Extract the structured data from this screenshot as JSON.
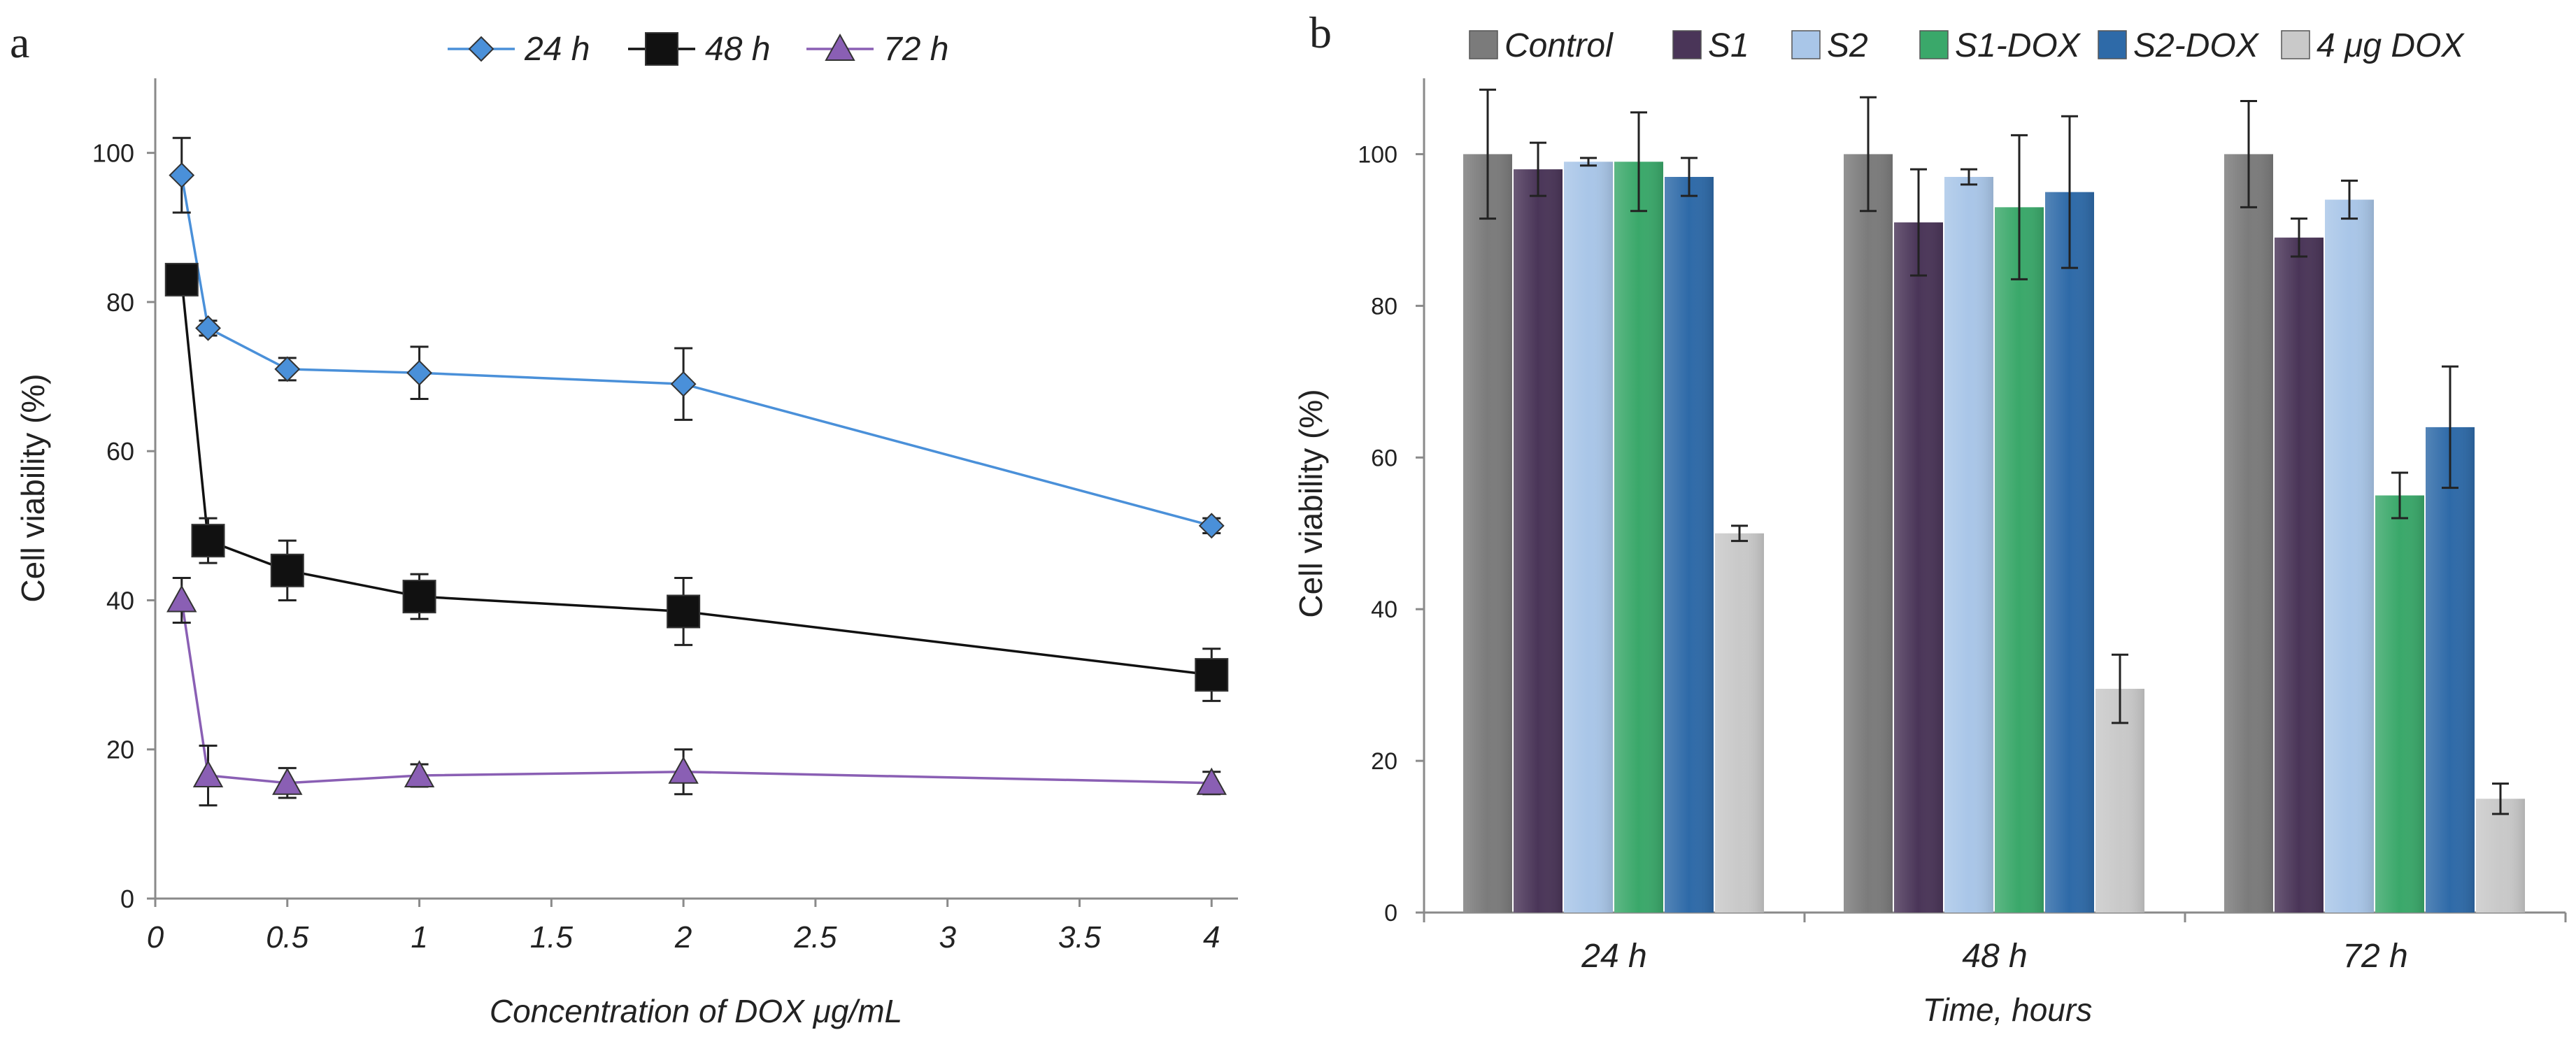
{
  "chart_data": [
    {
      "panel": "a",
      "type": "line",
      "title": "",
      "xlabel": "Concentration of  DOX  μg/mL",
      "ylabel": "Cell viability (%)",
      "x_ticks": [
        "0",
        "0.5",
        "1",
        "1.5",
        "2",
        "2.5",
        "3",
        "3.5",
        "4"
      ],
      "y_ticks": [
        "0",
        "20",
        "40",
        "60",
        "80",
        "100"
      ],
      "xlim": [
        0,
        4.1
      ],
      "ylim": [
        0,
        110
      ],
      "grid": false,
      "legend_position": "top",
      "x": [
        0.1,
        0.2,
        0.5,
        1,
        2,
        4
      ],
      "series": [
        {
          "name": "24 h",
          "marker": "diamond",
          "color": "#4a90d9",
          "values": [
            97,
            76.5,
            71,
            70.5,
            69,
            50
          ],
          "errors": [
            5,
            1,
            1.5,
            3.5,
            4.8,
            1
          ]
        },
        {
          "name": "48 h",
          "marker": "square",
          "color": "#111111",
          "values": [
            83,
            48,
            44,
            40.5,
            38.5,
            30
          ],
          "errors": [
            2,
            3,
            4,
            3,
            4.5,
            3.5
          ]
        },
        {
          "name": "72 h",
          "marker": "triangle",
          "color": "#8a5fb4",
          "values": [
            40,
            16.5,
            15.5,
            16.5,
            17,
            15.5
          ],
          "errors": [
            3,
            4,
            2,
            1.5,
            3,
            1.5
          ]
        }
      ]
    },
    {
      "panel": "b",
      "type": "bar",
      "title": "",
      "xlabel": "Time, hours",
      "ylabel": "Cell viability (%)",
      "categories": [
        "24 h",
        "48 h",
        "72 h"
      ],
      "y_ticks": [
        "0",
        "20",
        "40",
        "60",
        "80",
        "100"
      ],
      "ylim": [
        0,
        110
      ],
      "grid": false,
      "legend_position": "top",
      "series": [
        {
          "name": "Control",
          "color": "#7b7b7b",
          "values": [
            100,
            100,
            100
          ],
          "errors": [
            8.5,
            7.5,
            7
          ]
        },
        {
          "name": "S1",
          "color": "#4a3558",
          "values": [
            98,
            91,
            89
          ],
          "errors": [
            3.5,
            7,
            2.5
          ]
        },
        {
          "name": "S2",
          "color": "#a9c6e8",
          "values": [
            99,
            97,
            94
          ],
          "errors": [
            0.5,
            1,
            2.5
          ]
        },
        {
          "name": "S1-DOX",
          "color": "#3aa86a",
          "values": [
            99,
            93,
            55
          ],
          "errors": [
            6.5,
            9.5,
            3
          ]
        },
        {
          "name": "S2-DOX",
          "color": "#2e6aa8",
          "values": [
            97,
            95,
            64
          ],
          "errors": [
            2.5,
            10,
            8
          ]
        },
        {
          "name": "4 μg DOX",
          "color": "#c9c9c9",
          "values": [
            50,
            29.5,
            15
          ],
          "errors": [
            1,
            4.5,
            2
          ]
        }
      ]
    }
  ]
}
